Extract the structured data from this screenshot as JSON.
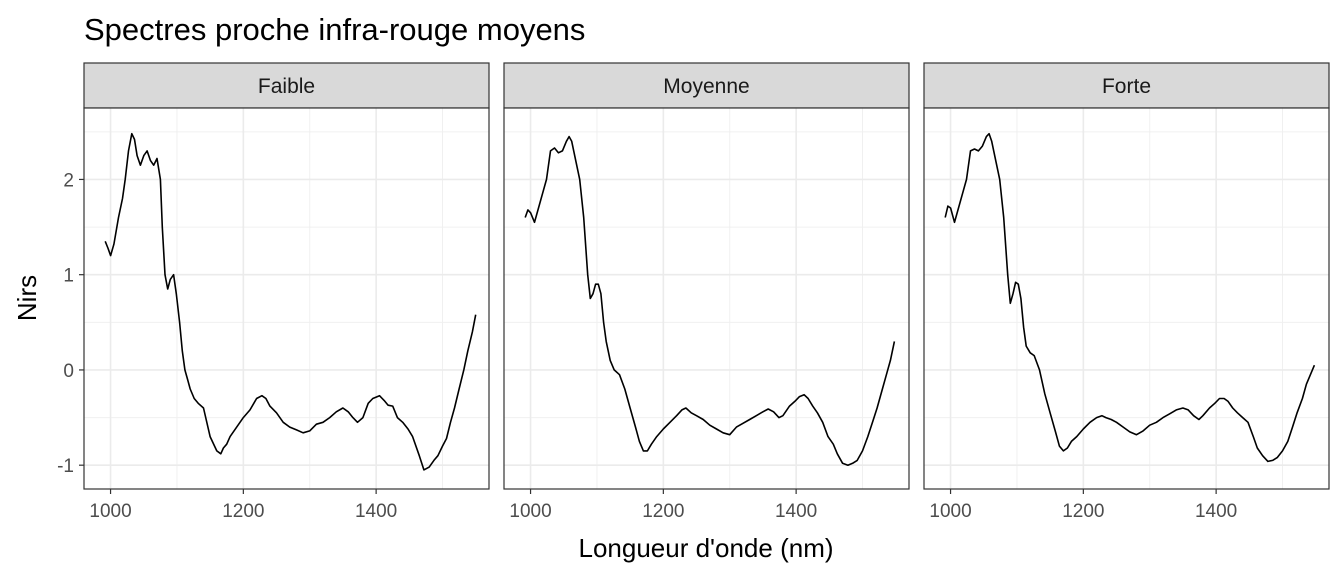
{
  "chart_data": {
    "type": "line",
    "title": "Spectres proche infra-rouge moyens",
    "xlabel": "Longueur d'onde (nm)",
    "ylabel": "Nirs",
    "xlim": [
      960,
      1570
    ],
    "ylim": [
      -1.25,
      2.75
    ],
    "x_ticks": [
      1000,
      1200,
      1400
    ],
    "x_tick_labels": [
      "1000",
      "1200",
      "1400"
    ],
    "y_ticks": [
      -1,
      0,
      1,
      2
    ],
    "y_tick_labels": [
      "-1",
      "0",
      "1",
      "2"
    ],
    "grid": true,
    "legend": "none",
    "facets": [
      {
        "label": "Faible",
        "x": [
          992,
          996,
          1000,
          1005,
          1012,
          1018,
          1022,
          1027,
          1032,
          1036,
          1040,
          1045,
          1050,
          1055,
          1060,
          1065,
          1070,
          1075,
          1078,
          1082,
          1086,
          1090,
          1095,
          1099,
          1104,
          1108,
          1112,
          1116,
          1120,
          1126,
          1132,
          1140,
          1150,
          1160,
          1166,
          1170,
          1175,
          1180,
          1190,
          1200,
          1210,
          1220,
          1228,
          1234,
          1240,
          1250,
          1260,
          1270,
          1280,
          1290,
          1300,
          1310,
          1320,
          1330,
          1340,
          1350,
          1358,
          1365,
          1372,
          1380,
          1388,
          1395,
          1405,
          1412,
          1418,
          1425,
          1432,
          1440,
          1448,
          1455,
          1465,
          1472,
          1480,
          1487,
          1493,
          1500,
          1506,
          1512,
          1518,
          1525,
          1532,
          1538,
          1545,
          1550
        ],
        "values": [
          1.35,
          1.28,
          1.2,
          1.32,
          1.6,
          1.8,
          2.0,
          2.3,
          2.48,
          2.42,
          2.25,
          2.15,
          2.25,
          2.3,
          2.2,
          2.15,
          2.22,
          2.0,
          1.5,
          1.0,
          0.85,
          0.95,
          1.0,
          0.8,
          0.5,
          0.2,
          0.0,
          -0.1,
          -0.2,
          -0.3,
          -0.35,
          -0.4,
          -0.7,
          -0.85,
          -0.88,
          -0.82,
          -0.78,
          -0.7,
          -0.6,
          -0.5,
          -0.42,
          -0.3,
          -0.27,
          -0.3,
          -0.38,
          -0.45,
          -0.55,
          -0.6,
          -0.63,
          -0.66,
          -0.64,
          -0.57,
          -0.55,
          -0.5,
          -0.44,
          -0.4,
          -0.44,
          -0.5,
          -0.55,
          -0.5,
          -0.35,
          -0.3,
          -0.27,
          -0.32,
          -0.37,
          -0.38,
          -0.5,
          -0.55,
          -0.62,
          -0.7,
          -0.9,
          -1.05,
          -1.02,
          -0.95,
          -0.9,
          -0.8,
          -0.72,
          -0.55,
          -0.4,
          -0.2,
          0.0,
          0.2,
          0.4,
          0.58
        ]
      },
      {
        "label": "Moyenne",
        "x": [
          992,
          996,
          1000,
          1006,
          1012,
          1018,
          1024,
          1030,
          1036,
          1042,
          1048,
          1054,
          1058,
          1062,
          1068,
          1074,
          1080,
          1086,
          1090,
          1094,
          1098,
          1102,
          1106,
          1110,
          1114,
          1120,
          1126,
          1134,
          1142,
          1150,
          1158,
          1164,
          1170,
          1176,
          1182,
          1190,
          1200,
          1210,
          1220,
          1228,
          1234,
          1242,
          1250,
          1260,
          1270,
          1280,
          1290,
          1300,
          1310,
          1320,
          1330,
          1340,
          1350,
          1358,
          1366,
          1374,
          1380,
          1390,
          1398,
          1405,
          1412,
          1418,
          1425,
          1432,
          1440,
          1448,
          1456,
          1462,
          1470,
          1478,
          1485,
          1492,
          1500,
          1508,
          1515,
          1522,
          1530,
          1536,
          1542,
          1548
        ],
        "values": [
          1.6,
          1.68,
          1.65,
          1.55,
          1.7,
          1.85,
          2.0,
          2.3,
          2.33,
          2.28,
          2.3,
          2.4,
          2.45,
          2.4,
          2.2,
          2.0,
          1.6,
          1.0,
          0.75,
          0.8,
          0.9,
          0.9,
          0.8,
          0.5,
          0.3,
          0.1,
          0.0,
          -0.05,
          -0.2,
          -0.4,
          -0.6,
          -0.75,
          -0.85,
          -0.85,
          -0.78,
          -0.7,
          -0.62,
          -0.55,
          -0.48,
          -0.42,
          -0.4,
          -0.45,
          -0.48,
          -0.52,
          -0.58,
          -0.62,
          -0.66,
          -0.68,
          -0.6,
          -0.56,
          -0.52,
          -0.48,
          -0.44,
          -0.41,
          -0.44,
          -0.5,
          -0.48,
          -0.38,
          -0.33,
          -0.28,
          -0.26,
          -0.3,
          -0.38,
          -0.45,
          -0.55,
          -0.7,
          -0.78,
          -0.88,
          -0.98,
          -1.0,
          -0.98,
          -0.95,
          -0.85,
          -0.7,
          -0.55,
          -0.4,
          -0.2,
          -0.05,
          0.1,
          0.3
        ]
      },
      {
        "label": "Forte",
        "x": [
          992,
          996,
          1000,
          1006,
          1012,
          1018,
          1024,
          1030,
          1036,
          1042,
          1048,
          1054,
          1058,
          1062,
          1068,
          1074,
          1080,
          1086,
          1090,
          1094,
          1098,
          1102,
          1106,
          1110,
          1114,
          1120,
          1126,
          1134,
          1142,
          1150,
          1158,
          1164,
          1170,
          1176,
          1182,
          1190,
          1200,
          1210,
          1220,
          1228,
          1234,
          1242,
          1250,
          1260,
          1270,
          1280,
          1290,
          1300,
          1310,
          1320,
          1330,
          1340,
          1350,
          1358,
          1366,
          1374,
          1380,
          1390,
          1398,
          1405,
          1412,
          1418,
          1425,
          1432,
          1440,
          1448,
          1456,
          1462,
          1470,
          1478,
          1485,
          1492,
          1500,
          1508,
          1515,
          1522,
          1530,
          1536,
          1542,
          1548
        ],
        "values": [
          1.6,
          1.72,
          1.7,
          1.55,
          1.7,
          1.85,
          2.0,
          2.3,
          2.32,
          2.3,
          2.35,
          2.45,
          2.48,
          2.4,
          2.2,
          2.0,
          1.6,
          1.0,
          0.7,
          0.8,
          0.92,
          0.9,
          0.75,
          0.45,
          0.25,
          0.18,
          0.15,
          0.0,
          -0.25,
          -0.45,
          -0.65,
          -0.8,
          -0.85,
          -0.82,
          -0.75,
          -0.7,
          -0.62,
          -0.55,
          -0.5,
          -0.48,
          -0.5,
          -0.52,
          -0.55,
          -0.6,
          -0.65,
          -0.68,
          -0.64,
          -0.58,
          -0.55,
          -0.5,
          -0.46,
          -0.42,
          -0.4,
          -0.42,
          -0.48,
          -0.52,
          -0.48,
          -0.4,
          -0.35,
          -0.3,
          -0.3,
          -0.33,
          -0.4,
          -0.45,
          -0.5,
          -0.55,
          -0.7,
          -0.82,
          -0.9,
          -0.96,
          -0.95,
          -0.92,
          -0.85,
          -0.75,
          -0.6,
          -0.45,
          -0.3,
          -0.15,
          -0.05,
          0.05
        ]
      }
    ]
  }
}
